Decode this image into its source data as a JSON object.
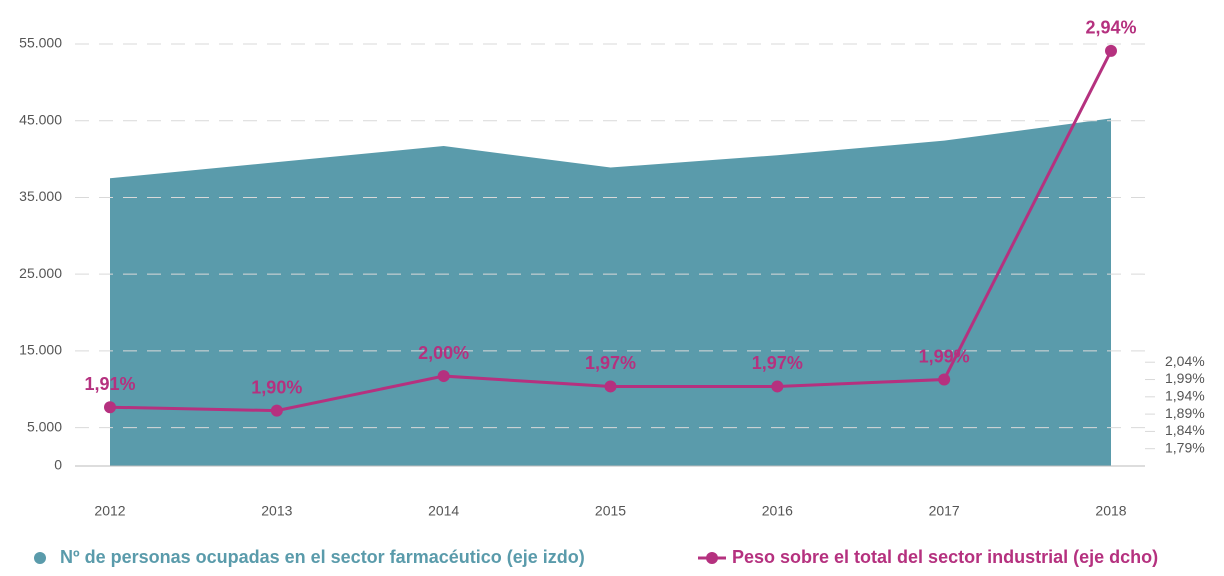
{
  "chart_data": {
    "type": "combo",
    "categories": [
      "2012",
      "2013",
      "2014",
      "2015",
      "2016",
      "2017",
      "2018"
    ],
    "series": [
      {
        "name": "Nº de personas ocupadas en el sector farmacéutico (eje izdo)",
        "type": "area",
        "color": "#5a9bab",
        "axis": "y",
        "values": [
          37500,
          39600,
          41700,
          38900,
          40500,
          42400,
          45300
        ]
      },
      {
        "name": "Peso sobre el total del sector industrial (eje dcho)",
        "type": "line",
        "color": "#b5317f",
        "axis": "y2",
        "values": [
          1.91,
          1.9,
          2.0,
          1.97,
          1.97,
          1.99,
          2.94
        ],
        "value_labels": [
          "1,91%",
          "1,90%",
          "2,00%",
          "1,97%",
          "1,97%",
          "1,99%",
          "2,94%"
        ]
      }
    ],
    "ylim": [
      0,
      55000
    ],
    "yticks": [
      0,
      {
        "value": 5000,
        "label": "5.000"
      },
      {
        "value": 15000,
        "label": "15.000"
      },
      {
        "value": 25000,
        "label": "25.000"
      },
      {
        "value": 35000,
        "label": "35.000"
      },
      {
        "value": 45000,
        "label": "45.000"
      },
      {
        "value": 55000,
        "label": "55.000"
      }
    ],
    "y2lim": [
      1.74,
      2.96
    ],
    "y2ticks": [
      {
        "value": 1.79,
        "label": "1,79%"
      },
      {
        "value": 1.84,
        "label": "1,84%"
      },
      {
        "value": 1.89,
        "label": "1,89%"
      },
      {
        "value": 1.94,
        "label": "1,94%"
      },
      {
        "value": 1.99,
        "label": "1,99%"
      },
      {
        "value": 2.04,
        "label": "2,04%"
      }
    ],
    "grid": true,
    "legend": "bottom"
  }
}
